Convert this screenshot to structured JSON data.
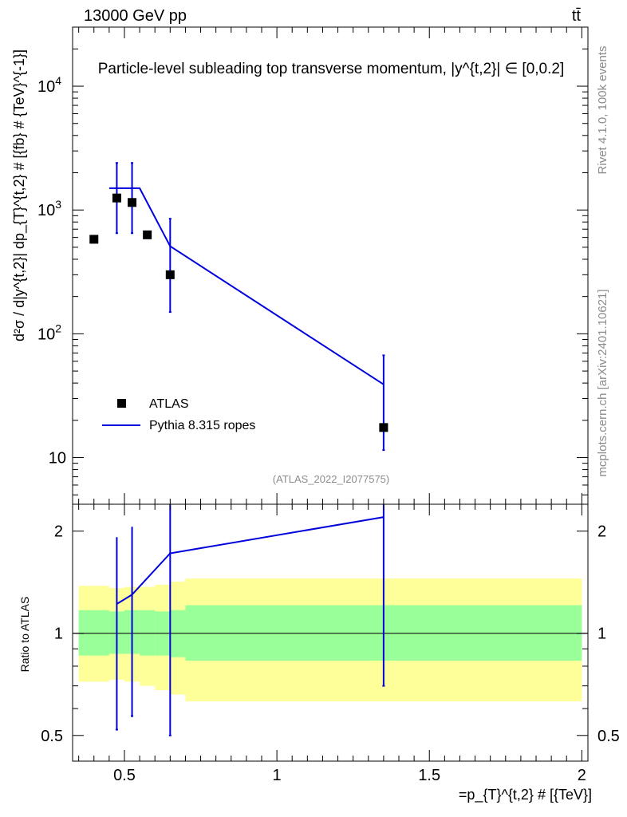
{
  "header": {
    "energy": "13000 GeV pp",
    "process": "tt̄",
    "title": "Particle-level subleading top transverse momentum, |y^{t,2}| ∈ [0,0.2]",
    "rivet_label": "Rivet 4.1.0,  100k events",
    "mcplots_label": "mcplots.cern.ch [arXiv:2401.10621]",
    "analysis_id": "(ATLAS_2022_I2077575)"
  },
  "colors": {
    "data": "#000000",
    "mc": "#0000dd",
    "band_inner": "#99ff99",
    "band_outer": "#ffff99"
  },
  "chart_data": [
    {
      "type": "scatter",
      "panel": "main",
      "title": "Particle-level subleading top transverse momentum, |y^{t,2}| ∈ [0,0.2]",
      "xlabel": "=p_{T}^{t,2} # [{TeV}]",
      "ylabel": "d²σ / d|y^{t,2}| dp_{T}^{t,2} # [{fb} # {TeV}^{-1}]",
      "yscale": "log",
      "xlim": [
        0.33,
        2.02
      ],
      "ylim": [
        4.2,
        30000
      ],
      "yticks": [
        10,
        100,
        1000,
        10000
      ],
      "ytick_labels": [
        "10",
        "10^2",
        "10^3",
        "10^4"
      ],
      "legend_position": "lower-left",
      "series": [
        {
          "name": "ATLAS",
          "kind": "data-points",
          "x": [
            0.4,
            0.475,
            0.525,
            0.575,
            0.65,
            1.35
          ],
          "y": [
            580,
            1250,
            1150,
            630,
            300,
            17.5
          ]
        },
        {
          "name": "Pythia 8.315 ropes",
          "kind": "histogram-line",
          "bin_edges": [
            0.45,
            0.5,
            0.55,
            0.6,
            0.7,
            2.0
          ],
          "x": [
            0.475,
            0.525,
            0.575,
            0.65,
            1.35
          ],
          "y": [
            1500,
            1500,
            1050,
            510,
            39
          ],
          "yerr_low": [
            650,
            650,
            null,
            150,
            11.5
          ],
          "yerr_high": [
            2400,
            2400,
            null,
            850,
            67
          ]
        }
      ]
    },
    {
      "type": "line",
      "panel": "ratio",
      "ylabel": "Ratio to ATLAS",
      "xlabel": "=p_{T}^{t,2} # [{TeV}]",
      "xlim": [
        0.33,
        2.02
      ],
      "ylim": [
        0.42,
        2.4
      ],
      "yscale": "log",
      "yticks": [
        0.5,
        1,
        2
      ],
      "ytick_labels": [
        "0.5",
        "1",
        "2"
      ],
      "xticks": [
        0.5,
        1,
        1.5,
        2
      ],
      "xtick_labels": [
        "0.5",
        "1",
        "1.5",
        "2"
      ],
      "bands": {
        "bin_edges": [
          0.35,
          0.45,
          0.5,
          0.55,
          0.6,
          0.65,
          0.7,
          2.0
        ],
        "inner_low": [
          0.86,
          0.87,
          0.87,
          0.86,
          0.86,
          0.85,
          0.83
        ],
        "inner_high": [
          1.17,
          1.16,
          1.17,
          1.17,
          1.16,
          1.17,
          1.21
        ],
        "outer_low": [
          0.72,
          0.73,
          0.72,
          0.7,
          0.68,
          0.66,
          0.63
        ],
        "outer_high": [
          1.38,
          1.36,
          1.37,
          1.37,
          1.39,
          1.42,
          1.45
        ]
      },
      "series": [
        {
          "name": "Pythia 8.315 ropes",
          "x": [
            0.475,
            0.525,
            0.65,
            1.35
          ],
          "y": [
            1.22,
            1.3,
            1.72,
            2.2
          ],
          "yerr_low": [
            0.52,
            0.57,
            0.5,
            0.7
          ],
          "yerr_high": [
            1.92,
            2.06,
            2.4,
            2.4
          ]
        }
      ]
    }
  ]
}
